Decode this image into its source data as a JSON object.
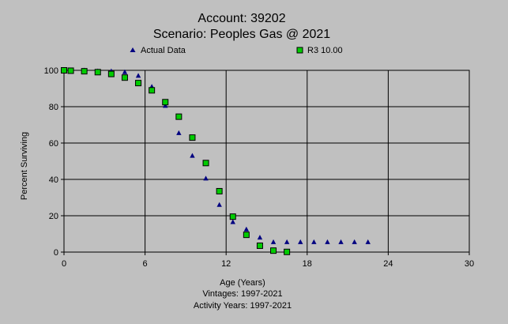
{
  "chart_data": {
    "type": "scatter",
    "title": "Account: 39202",
    "subtitle": "Scenario: Peoples Gas @ 2021",
    "xlabel": "Age (Years)",
    "ylabel": "Percent Surviving",
    "xlim": [
      0,
      30
    ],
    "ylim": [
      0,
      100
    ],
    "xticks": [
      0,
      6,
      12,
      18,
      24,
      30
    ],
    "yticks": [
      0,
      20,
      40,
      60,
      80,
      100
    ],
    "grid": true,
    "legend_position": "top",
    "footer": [
      "Vintages: 1997-2021",
      "Activity Years: 1997-2021"
    ],
    "series": [
      {
        "name": "Actual Data",
        "marker": "triangle",
        "color": "#000080",
        "x": [
          0,
          0.5,
          1.5,
          2.5,
          3.5,
          4.5,
          5.5,
          6.5,
          7.5,
          8.5,
          9.5,
          10.5,
          11.5,
          12.5,
          13.5,
          14.5,
          15.5,
          16.5,
          17.5,
          18.5,
          19.5,
          20.5,
          21.5,
          22.5
        ],
        "y": [
          100,
          100,
          100,
          99.5,
          99.5,
          99,
          97,
          91,
          80.5,
          65.5,
          53,
          40.5,
          26,
          16.5,
          12.5,
          8,
          5.5,
          5.5,
          5.5,
          5.5,
          5.5,
          5.5,
          5.5,
          5.5
        ]
      },
      {
        "name": "R3 10.00",
        "marker": "square",
        "color": "#00cc00",
        "x": [
          0,
          0.5,
          1.5,
          2.5,
          3.5,
          4.5,
          5.5,
          6.5,
          7.5,
          8.5,
          9.5,
          10.5,
          11.5,
          12.5,
          13.5,
          14.5,
          15.5,
          16.5
        ],
        "y": [
          100,
          99.8,
          99.5,
          99,
          98,
          96,
          93,
          89,
          82.5,
          74.5,
          63,
          49,
          33.5,
          19.5,
          9.5,
          3.5,
          0.8,
          0.1
        ]
      }
    ]
  },
  "colors": {
    "background": "#c0c0c0",
    "plot_background": "#c0c0c0",
    "grid": "#000000"
  }
}
